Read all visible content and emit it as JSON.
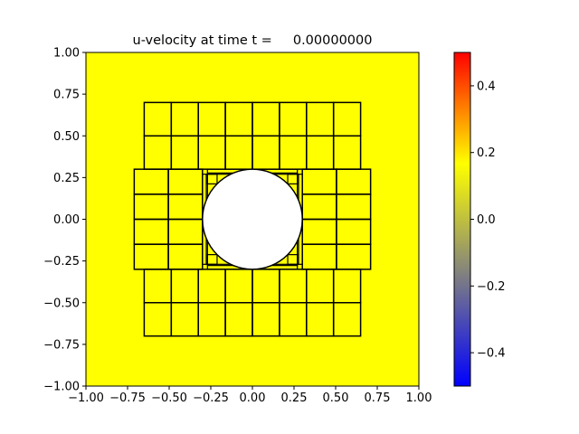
{
  "chart_data": {
    "type": "heatmap",
    "title": "u-velocity at time t =     0.00000000",
    "xlabel": "",
    "ylabel": "",
    "xlim": [
      -1.0,
      1.0
    ],
    "ylim": [
      -1.0,
      1.0
    ],
    "x_ticks": [
      "−1.00",
      "−0.75",
      "−0.50",
      "−0.25",
      "0.00",
      "0.25",
      "0.50",
      "0.75",
      "1.00"
    ],
    "y_ticks": [
      "−1.00",
      "−0.75",
      "−0.50",
      "−0.25",
      "0.00",
      "0.25",
      "0.50",
      "0.75",
      "1.00"
    ],
    "field_value": 0.0,
    "field_color": "#ffff00",
    "grid": false,
    "colorbar": {
      "min": -0.5,
      "max": 0.5,
      "ticks": [
        "−0.4",
        "−0.2",
        "0.0",
        "0.2",
        "0.4"
      ],
      "colors": [
        "#0000ff",
        "#808080",
        "#ffff00",
        "#ff0000"
      ]
    },
    "obstacle": {
      "shape": "circle",
      "center": [
        0.0,
        0.0
      ],
      "radius": 0.3
    },
    "mesh_blocks": [
      {
        "region": "top",
        "x0": -0.65,
        "x1": 0.65,
        "y0": 0.3,
        "y1": 0.7,
        "nx": 8,
        "ny": 2
      },
      {
        "region": "bottom",
        "x0": -0.65,
        "x1": 0.65,
        "y0": -0.7,
        "y1": -0.3,
        "nx": 8,
        "ny": 2
      },
      {
        "region": "left",
        "x0": -0.71,
        "x1": -0.3,
        "y0": -0.3,
        "y1": 0.3,
        "nx": 2,
        "ny": 4
      },
      {
        "region": "right",
        "x0": 0.3,
        "x1": 0.71,
        "y0": -0.3,
        "y1": 0.3,
        "nx": 2,
        "ny": 4
      }
    ]
  }
}
